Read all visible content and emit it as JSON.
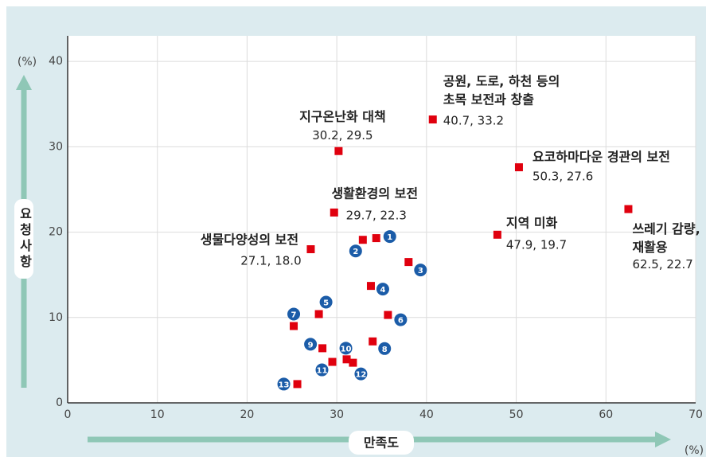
{
  "chart_data": {
    "type": "scatter",
    "xlabel": "만족도",
    "ylabel": "요청사항",
    "x_unit": "(%)",
    "y_unit": "(%)",
    "xlim": [
      0,
      70
    ],
    "ylim": [
      0,
      43
    ],
    "xticks": [
      0,
      10,
      20,
      30,
      40,
      50,
      60,
      70
    ],
    "yticks": [
      0,
      10,
      20,
      30,
      40
    ],
    "grid": true,
    "series": [
      {
        "color": "#e0000e",
        "x": [
          40.7,
          30.2,
          29.7,
          27.1,
          50.3,
          47.9,
          62.5
        ],
        "values": [
          33.2,
          29.5,
          22.3,
          18.0,
          27.6,
          19.7,
          22.7
        ],
        "labels": [
          [
            "공원, 도로, 하천 등의",
            "초목 보전과 창출"
          ],
          [
            "지구온난화 대책"
          ],
          [
            "생활환경의 보전"
          ],
          [
            "생물다양성의 보전"
          ],
          [
            "요코하마다운 경관의 보전"
          ],
          [
            "지역 미화"
          ],
          [
            "쓰레기 감량,",
            "재활용"
          ]
        ],
        "value_labels": [
          "40.7, 33.2",
          "30.2, 29.5",
          "29.7, 22.3",
          "27.1, 18.0",
          "50.3, 27.6",
          "47.9, 19.7",
          "62.5, 22.7"
        ]
      },
      {
        "color": "#e0000e",
        "badge_color": "#1b5ca8",
        "x": [
          34.4,
          32.9,
          38.0,
          33.8,
          28.0,
          35.7,
          25.2,
          34.0,
          28.4,
          31.1,
          29.5,
          31.8,
          25.6
        ],
        "values": [
          19.3,
          19.1,
          16.5,
          13.7,
          10.4,
          10.3,
          9.0,
          7.2,
          6.4,
          5.1,
          4.8,
          4.7,
          2.2
        ],
        "labels": [
          "1",
          "2",
          "3",
          "4",
          "5",
          "6",
          "7",
          "8",
          "9",
          "10",
          "11",
          "12",
          "13"
        ]
      }
    ]
  }
}
